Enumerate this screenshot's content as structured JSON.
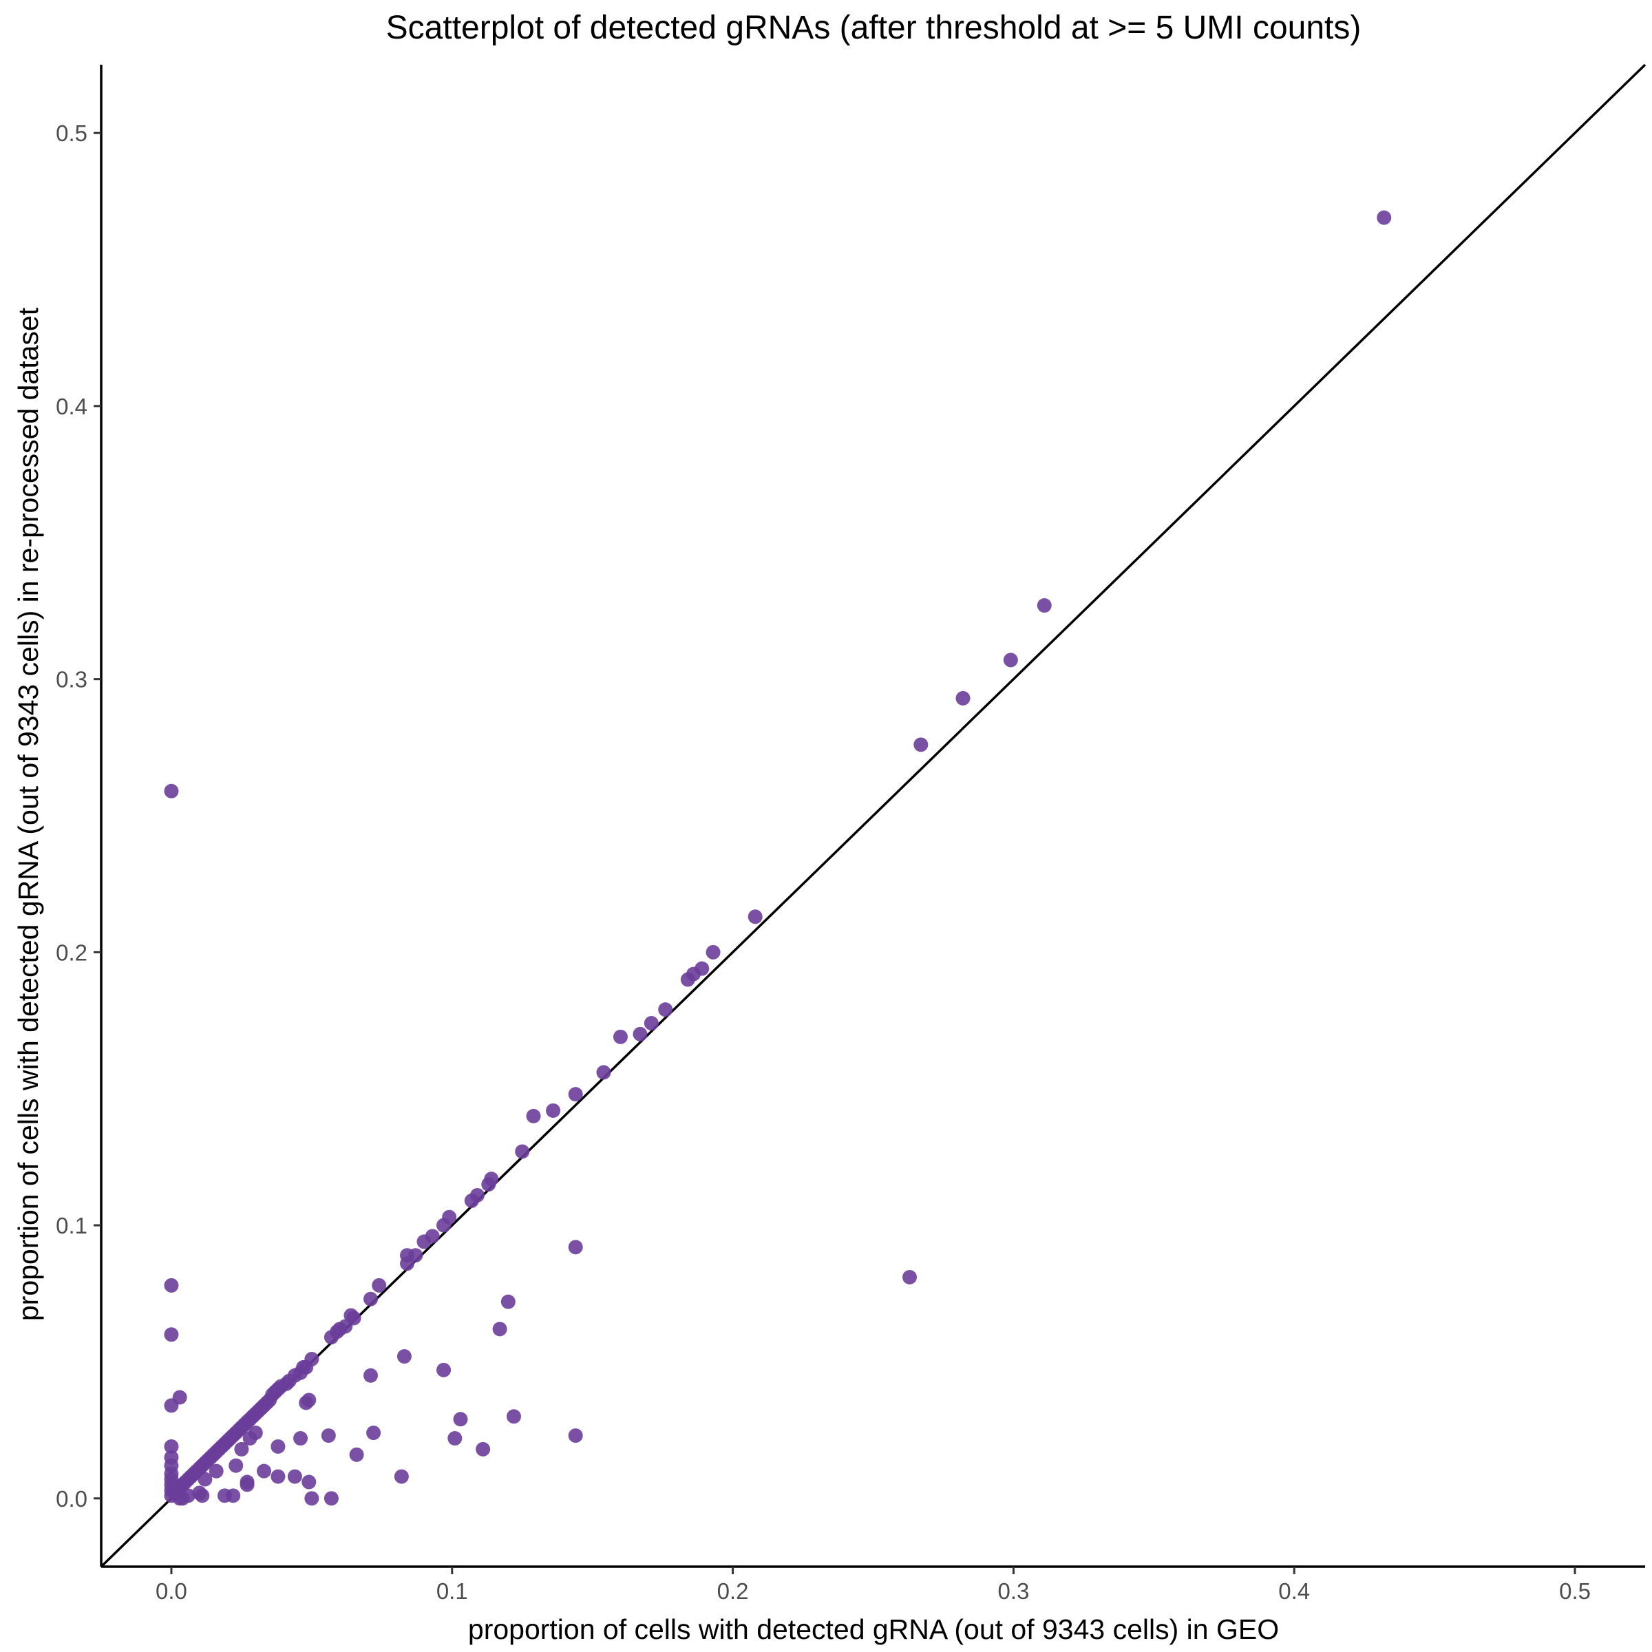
{
  "chart_data": {
    "type": "scatter",
    "title": "Scatterplot of detected gRNAs (after threshold at >= 5 UMI counts)",
    "xlabel": "proportion of cells with detected gRNA (out of 9343 cells) in GEO",
    "ylabel": "proportion of cells with detected gRNA (out of 9343 cells) in re-processed dataset",
    "xlim": [
      -0.025,
      0.525
    ],
    "ylim": [
      -0.025,
      0.525
    ],
    "x_ticks": [
      {
        "value": 0.0,
        "label": "0.0"
      },
      {
        "value": 0.1,
        "label": "0.1"
      },
      {
        "value": 0.2,
        "label": "0.2"
      },
      {
        "value": 0.3,
        "label": "0.3"
      },
      {
        "value": 0.4,
        "label": "0.4"
      },
      {
        "value": 0.5,
        "label": "0.5"
      }
    ],
    "y_ticks": [
      {
        "value": 0.0,
        "label": "0.0"
      },
      {
        "value": 0.1,
        "label": "0.1"
      },
      {
        "value": 0.2,
        "label": "0.2"
      },
      {
        "value": 0.3,
        "label": "0.3"
      },
      {
        "value": 0.4,
        "label": "0.4"
      },
      {
        "value": 0.5,
        "label": "0.5"
      }
    ],
    "grid": false,
    "reference_line": "y = x",
    "point_color": "#6a3d9a",
    "series": [
      {
        "x": [
          0.432,
          0.311,
          0.299,
          0.282,
          0.267,
          0.208,
          0.193,
          0.189,
          0.186,
          0.184,
          0.176,
          0.171,
          0.167,
          0.16,
          0.154,
          0.144,
          0.136,
          0.129,
          0.125,
          0.114,
          0.113,
          0.109,
          0.107,
          0.099,
          0.097,
          0.093,
          0.09,
          0.087,
          0.084,
          0.084,
          0.074,
          0.071,
          0.065,
          0.064,
          0.062,
          0.06,
          0.059,
          0.057,
          0.05,
          0.048,
          0.047,
          0.046,
          0.044,
          0.042,
          0.041,
          0.039,
          0.038,
          0.037,
          0.036,
          0.035,
          0.034,
          0.033,
          0.032,
          0.031,
          0.03,
          0.029,
          0.028,
          0.027,
          0.026,
          0.025,
          0.024,
          0.023,
          0.022,
          0.021,
          0.02,
          0.019,
          0.018,
          0.017,
          0.016,
          0.015,
          0.014,
          0.013,
          0.012,
          0.011,
          0.01,
          0.009,
          0.008,
          0.007,
          0.006,
          0.005,
          0.004,
          0.003,
          0.002,
          0.001,
          0.263,
          0.144,
          0.144,
          0.122,
          0.12,
          0.117,
          0.111,
          0.103,
          0.101,
          0.097,
          0.083,
          0.082,
          0.072,
          0.071,
          0.066,
          0.057,
          0.056,
          0.05,
          0.049,
          0.049,
          0.048,
          0.046,
          0.044,
          0.038,
          0.038,
          0.033,
          0.03,
          0.028,
          0.027,
          0.027,
          0.025,
          0.023,
          0.022,
          0.019,
          0.016,
          0.012,
          0.011,
          0.01,
          0.006,
          0.004,
          0.003,
          0.003,
          0.0,
          0.0,
          0.0,
          0.0,
          0.0,
          0.0,
          0.0,
          0.0,
          0.0,
          0.0,
          0.0,
          0.0
        ],
        "y": [
          0.469,
          0.327,
          0.307,
          0.293,
          0.276,
          0.213,
          0.2,
          0.194,
          0.192,
          0.19,
          0.179,
          0.174,
          0.17,
          0.169,
          0.156,
          0.148,
          0.142,
          0.14,
          0.127,
          0.117,
          0.115,
          0.111,
          0.109,
          0.103,
          0.1,
          0.096,
          0.094,
          0.089,
          0.089,
          0.086,
          0.078,
          0.073,
          0.066,
          0.067,
          0.063,
          0.062,
          0.061,
          0.059,
          0.051,
          0.048,
          0.048,
          0.046,
          0.045,
          0.043,
          0.042,
          0.041,
          0.04,
          0.039,
          0.038,
          0.036,
          0.035,
          0.034,
          0.033,
          0.032,
          0.031,
          0.03,
          0.029,
          0.028,
          0.027,
          0.026,
          0.025,
          0.024,
          0.023,
          0.022,
          0.021,
          0.02,
          0.019,
          0.018,
          0.017,
          0.016,
          0.015,
          0.014,
          0.013,
          0.012,
          0.011,
          0.01,
          0.009,
          0.008,
          0.007,
          0.006,
          0.005,
          0.004,
          0.003,
          0.002,
          0.081,
          0.092,
          0.023,
          0.03,
          0.072,
          0.062,
          0.018,
          0.029,
          0.022,
          0.047,
          0.052,
          0.008,
          0.024,
          0.045,
          0.016,
          0.0,
          0.023,
          0.0,
          0.036,
          0.006,
          0.035,
          0.022,
          0.008,
          0.019,
          0.008,
          0.01,
          0.024,
          0.022,
          0.005,
          0.006,
          0.018,
          0.012,
          0.001,
          0.001,
          0.01,
          0.007,
          0.001,
          0.002,
          0.001,
          0.0,
          0.037,
          0.0,
          0.259,
          0.078,
          0.06,
          0.034,
          0.019,
          0.015,
          0.012,
          0.009,
          0.007,
          0.005,
          0.003,
          0.001
        ]
      }
    ]
  }
}
